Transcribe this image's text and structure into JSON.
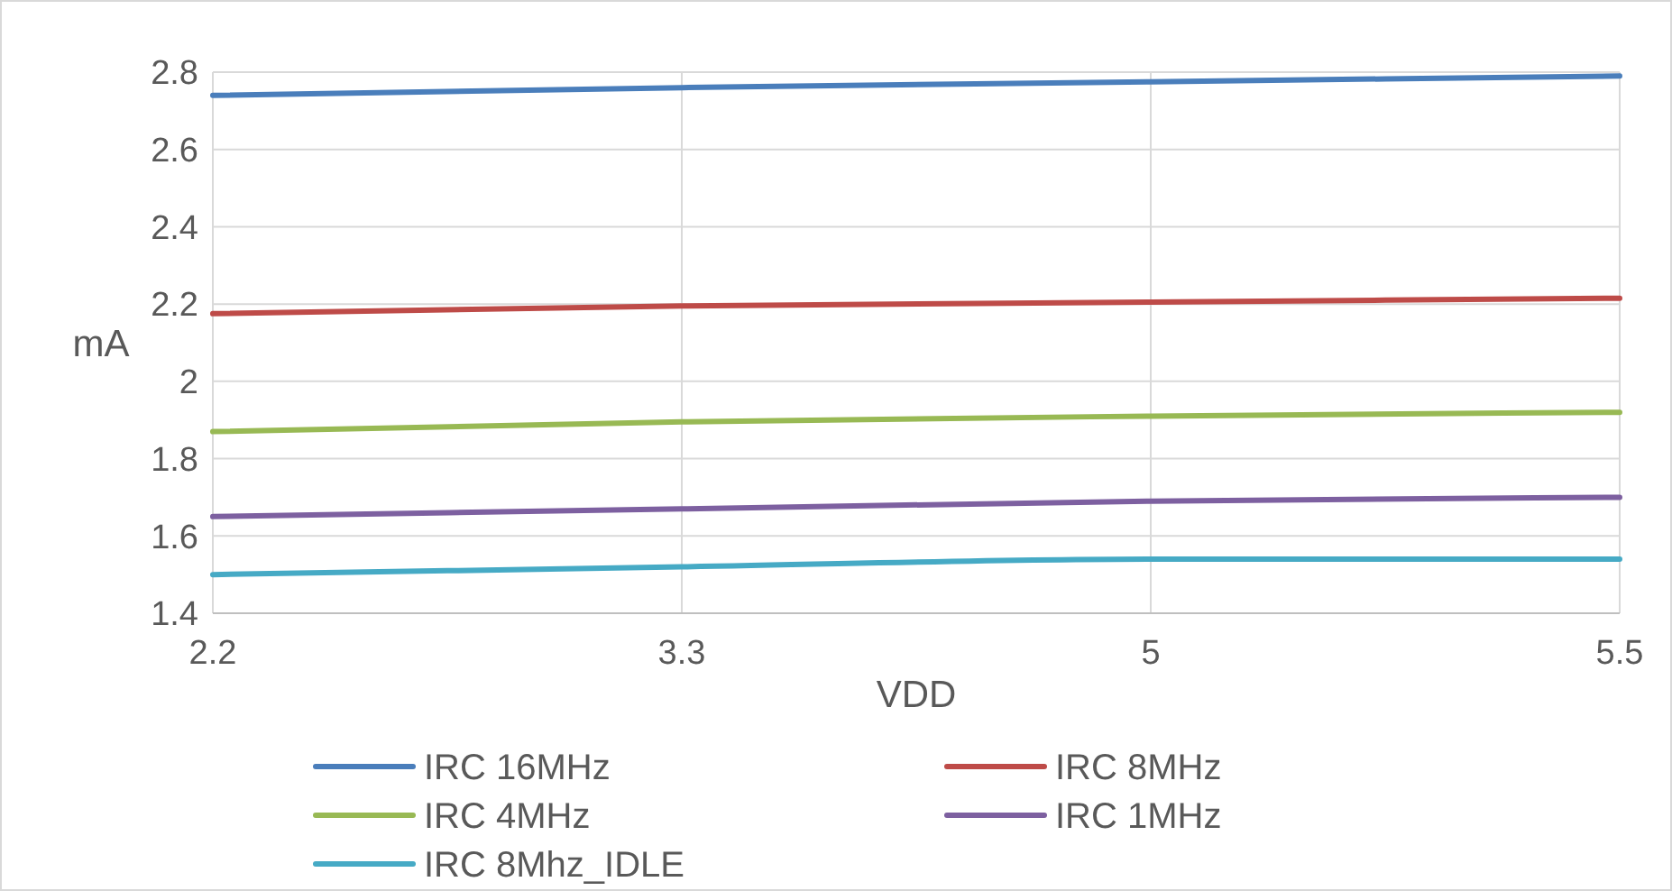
{
  "chart_data": {
    "type": "line",
    "xlabel": "VDD",
    "ylabel": "mA",
    "categories": [
      "2.2",
      "3.3",
      "5",
      "5.5"
    ],
    "series": [
      {
        "name": "IRC 16MHz",
        "color": "#4a7ebb",
        "values": [
          2.74,
          2.76,
          2.775,
          2.79
        ]
      },
      {
        "name": "IRC 8MHz",
        "color": "#be4b48",
        "values": [
          2.175,
          2.195,
          2.205,
          2.215
        ]
      },
      {
        "name": "IRC 4MHz",
        "color": "#98b954",
        "values": [
          1.87,
          1.895,
          1.91,
          1.92
        ]
      },
      {
        "name": "IRC 1MHz",
        "color": "#7d60a0",
        "values": [
          1.65,
          1.67,
          1.69,
          1.7
        ]
      },
      {
        "name": "IRC 8Mhz_IDLE",
        "color": "#46aac5",
        "values": [
          1.5,
          1.52,
          1.54,
          1.54
        ]
      }
    ],
    "ylim": [
      1.4,
      2.8
    ],
    "yticks": [
      {
        "value": 1.4,
        "label": "1.4"
      },
      {
        "value": 1.6,
        "label": "1.6"
      },
      {
        "value": 1.8,
        "label": "1.8"
      },
      {
        "value": 2,
        "label": "2"
      },
      {
        "value": 2.2,
        "label": "2.2"
      },
      {
        "value": 2.4,
        "label": "2.4"
      },
      {
        "value": 2.6,
        "label": "2.6"
      },
      {
        "value": 2.8,
        "label": "2.8"
      }
    ],
    "grid": true,
    "legend": "bottom",
    "marker": "none",
    "line_style": "solid"
  }
}
